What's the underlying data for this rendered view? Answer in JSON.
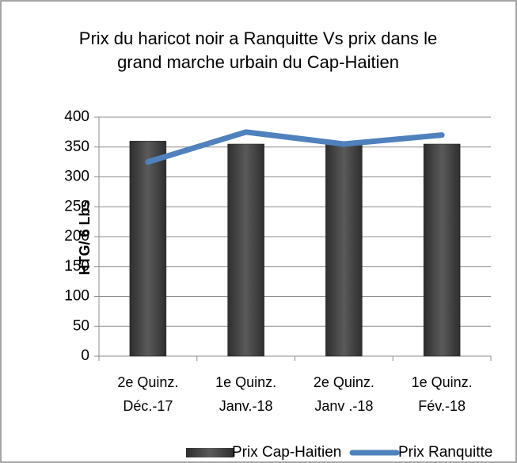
{
  "chart_data": {
    "type": "bar_line",
    "title": "Prix du haricot noir a Ranquitte Vs prix dans le grand marche urbain du Cap-Haitien",
    "y_label": "HTG/ 6 Lbs",
    "categories": [
      "2e Quinz.\nDéc.-17",
      "1e Quinz.\nJanv.-18",
      "2e Quinz.\nJanv .-18",
      "1e Quinz.\nFév.-18"
    ],
    "series": [
      {
        "name": "Prix Cap-Haitien",
        "type": "bar",
        "color": "#4a4a4a",
        "values": [
          360,
          355,
          355,
          355
        ]
      },
      {
        "name": "Prix Ranquitte",
        "type": "line",
        "color": "#4f81bd",
        "values": [
          325,
          375,
          355,
          370
        ]
      }
    ],
    "ylim": [
      0,
      400
    ],
    "yticks": [
      0,
      50,
      100,
      150,
      200,
      250,
      300,
      350,
      400
    ],
    "grid": true,
    "legend": "bottom"
  }
}
